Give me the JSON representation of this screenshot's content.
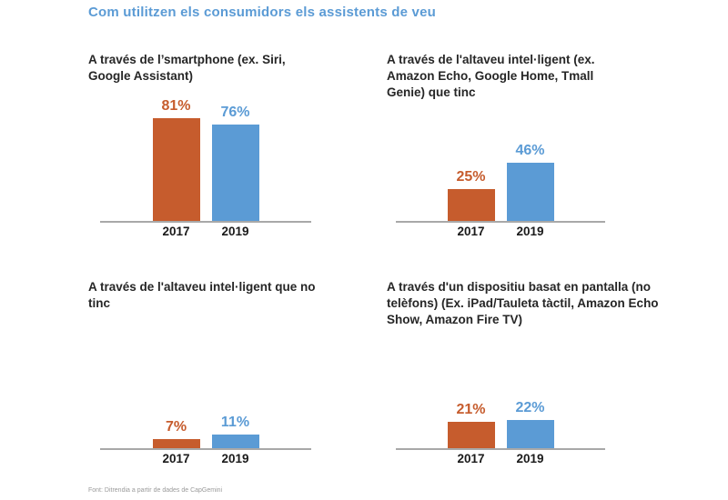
{
  "page": {
    "title": "Com utilitzen els consumidors els assistents de veu",
    "source": "Font: Ditrendia a partir de dades de CapGemini"
  },
  "colors": {
    "accent_blue": "#5B9BD5",
    "bar_2017": "#C65C2D",
    "bar_2019": "#5B9BD5",
    "axis": "#A8A8A8",
    "heading_text": "#262626",
    "source_text": "#9A9A9A"
  },
  "chart_data": [
    {
      "type": "bar",
      "title": "A través de l’smartphone (ex. Siri, Google Assistant)",
      "categories": [
        "2017",
        "2019"
      ],
      "values": [
        81,
        76
      ],
      "labels": [
        "81%",
        "76%"
      ],
      "xlabel": "",
      "ylabel": "",
      "ylim": [
        0,
        100
      ],
      "grid": false,
      "legend": "none"
    },
    {
      "type": "bar",
      "title": "A través de l'altaveu intel·ligent (ex. Amazon Echo, Google Home, Tmall Genie) que tinc",
      "categories": [
        "2017",
        "2019"
      ],
      "values": [
        25,
        46
      ],
      "labels": [
        "25%",
        "46%"
      ],
      "xlabel": "",
      "ylabel": "",
      "ylim": [
        0,
        100
      ],
      "grid": false,
      "legend": "none"
    },
    {
      "type": "bar",
      "title": "A través de l'altaveu intel·ligent que no tinc",
      "categories": [
        "2017",
        "2019"
      ],
      "values": [
        7,
        11
      ],
      "labels": [
        "7%",
        "11%"
      ],
      "xlabel": "",
      "ylabel": "",
      "ylim": [
        0,
        100
      ],
      "grid": false,
      "legend": "none"
    },
    {
      "type": "bar",
      "title": "A través d'un dispositiu basat en pantalla (no telèfons) (Ex. iPad/Tauleta tàctil, Amazon Echo Show, Amazon Fire TV)",
      "categories": [
        "2017",
        "2019"
      ],
      "values": [
        21,
        22
      ],
      "labels": [
        "21%",
        "22%"
      ],
      "xlabel": "",
      "ylabel": "",
      "ylim": [
        0,
        100
      ],
      "grid": false,
      "legend": "none"
    }
  ]
}
